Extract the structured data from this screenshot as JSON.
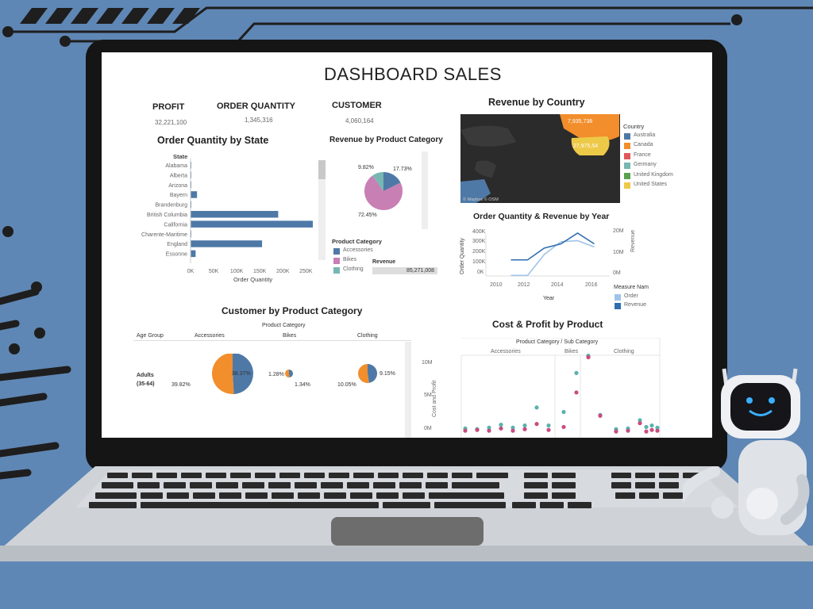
{
  "dashboard": {
    "title": "DASHBOARD SALES",
    "kpis": [
      {
        "label": "PROFIT",
        "value": "32,221,100"
      },
      {
        "label": "ORDER QUANTITY",
        "value": "1,345,316"
      },
      {
        "label": "CUSTOMER",
        "value": "4,060,164"
      }
    ]
  },
  "colors": {
    "page_bg": "#5f87b5",
    "bar": "#4e79a7",
    "accessories": "#4e79a7",
    "bikes": "#c77fb4",
    "clothing": "#76b7b2",
    "revenue_line": "#2f6fb0",
    "order_line": "#a0c4e8",
    "scatter_pink": "#c94c7e",
    "scatter_teal": "#5ab2ae",
    "orange": "#f28e2b"
  },
  "charts": {
    "state": {
      "title": "Order Quantity by State",
      "col_header": "State",
      "xlabel": "Order Quantity",
      "ticks": [
        "0K",
        "50K",
        "100K",
        "150K",
        "200K",
        "250K"
      ],
      "max": 265
    },
    "revenue_category": {
      "title": "Revenue by Product Category",
      "labels": [
        "9.82%",
        "17.73%",
        "72.45%"
      ],
      "legend_title": "Product Category",
      "legend": [
        "Accessories",
        "Bikes",
        "Clothing"
      ],
      "revenue_label": "Revenue",
      "revenue_value": "85,271,008"
    },
    "country": {
      "title": "Revenue by Country",
      "legend_title": "Country",
      "legend": [
        {
          "name": "Australia",
          "color": "#4e79a7"
        },
        {
          "name": "Canada",
          "color": "#f28e2b"
        },
        {
          "name": "France",
          "color": "#e15759"
        },
        {
          "name": "Germany",
          "color": "#76b7b2"
        },
        {
          "name": "United Kingdom",
          "color": "#59a14f"
        },
        {
          "name": "United States",
          "color": "#edc948"
        }
      ],
      "map_labels": [
        "7,935,738",
        "27,975,54"
      ],
      "attribution": "© Mapbox © OSM"
    },
    "year": {
      "title": "Order Quantity & Revenue by Year",
      "yleft_ticks": [
        "400K",
        "300K",
        "200K",
        "100K",
        "0K"
      ],
      "yright_ticks": [
        "20M",
        "10M",
        "0M"
      ],
      "yleft_label": "Order Quantity",
      "yright_label": "Revenue",
      "xticks": [
        "2010",
        "2012",
        "2014",
        "2016"
      ],
      "xlabel": "Year",
      "legend_title": "Measure Nam",
      "legend": [
        "Order",
        "Revenue"
      ]
    },
    "customer": {
      "title": "Customer by Product Category",
      "header": "Product Category",
      "row_header": "Age Group",
      "columns": [
        "Accessories",
        "Bikes",
        "Clothing"
      ],
      "row_label_1": "Adults",
      "row_label_2": "(35-64)",
      "pies": [
        {
          "a": "38.37%",
          "b": "39.82%"
        },
        {
          "a": "1.28%",
          "b": "1.34%"
        },
        {
          "a": "9.15%",
          "b": "10.05%"
        }
      ]
    },
    "cost": {
      "title": "Cost & Profit by Product",
      "header": "Product Category / Sub Category",
      "columns": [
        "Accessories",
        "Bikes",
        "Clothing"
      ],
      "ylabel": "Cost and Profit",
      "yticks": [
        "10M",
        "5M",
        "0M"
      ]
    }
  },
  "chart_data": [
    {
      "type": "bar",
      "title": "Order Quantity by State",
      "xlabel": "Order Quantity",
      "categories": [
        "Alabama",
        "Alberta",
        "Arizona",
        "Bayern",
        "Brandenburg",
        "British Columbia",
        "California",
        "Charente-Maritime",
        "England",
        "Essonne"
      ],
      "values": [
        0.5,
        0.5,
        0.5,
        14,
        1,
        190,
        265,
        0.5,
        155,
        11
      ],
      "units": "K"
    },
    {
      "type": "pie",
      "title": "Revenue by Product Category",
      "categories": [
        "Accessories",
        "Bikes",
        "Clothing"
      ],
      "values": [
        17.73,
        72.45,
        9.82
      ]
    },
    {
      "type": "line",
      "title": "Order Quantity & Revenue by Year",
      "xlabel": "Year",
      "x": [
        2011,
        2012,
        2013,
        2014,
        2015,
        2016
      ],
      "series": [
        {
          "name": "Order",
          "axis": "left",
          "values": [
            5,
            5,
            200,
            320,
            330,
            270
          ]
        },
        {
          "name": "Revenue",
          "axis": "right",
          "values": [
            7.5,
            7.5,
            13,
            15,
            20,
            15
          ]
        }
      ]
    },
    {
      "type": "pie",
      "title": "Customer by Product Category",
      "categories": [
        "Accessories",
        "Bikes",
        "Clothing"
      ],
      "pairs": [
        [
          38.37,
          39.82
        ],
        [
          1.28,
          1.34
        ],
        [
          9.15,
          10.05
        ]
      ]
    },
    {
      "type": "scatter",
      "title": "Cost & Profit by Product",
      "ylabel": "Cost and Profit",
      "ylim": [
        0,
        11
      ],
      "series": [
        {
          "name": "Cost",
          "values": [
            0.3,
            0.4,
            0.3,
            0.6,
            0.3,
            0.5,
            1.2,
            0.4,
            0.8,
            5.4,
            10.1,
            2.3,
            0.2,
            0.3,
            1.3,
            0.4,
            0.2,
            0.3
          ]
        },
        {
          "name": "Profit",
          "values": [
            0.6,
            0.5,
            0.7,
            1.1,
            0.7,
            1.0,
            3.4,
            1.0,
            2.8,
            8.0,
            10.3,
            2.4,
            0.5,
            0.6,
            1.7,
            1.0,
            0.8,
            0.7
          ]
        }
      ]
    }
  ]
}
